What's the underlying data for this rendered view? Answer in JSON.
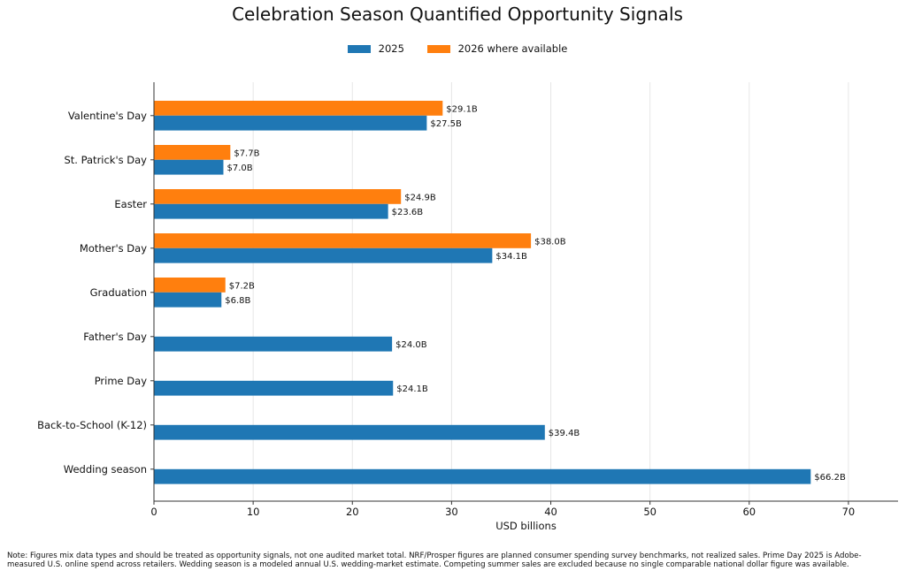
{
  "chart_data": {
    "type": "bar",
    "orientation": "horizontal",
    "title": "Celebration Season Quantified Opportunity Signals",
    "xlabel": "USD billions",
    "ylabel": "",
    "xlim": [
      0,
      75
    ],
    "xticks": [
      0,
      10,
      20,
      30,
      40,
      50,
      60,
      70
    ],
    "grid": "x",
    "legend_position": "top-center",
    "categories": [
      "Valentine's Day",
      "St. Patrick's Day",
      "Easter",
      "Mother's Day",
      "Graduation",
      "Father's Day",
      "Prime Day",
      "Back-to-School (K-12)",
      "Wedding season"
    ],
    "series": [
      {
        "name": "2025",
        "color": "#1f77b4",
        "values": [
          27.5,
          7.0,
          23.6,
          34.1,
          6.8,
          24.0,
          24.1,
          39.4,
          66.2
        ],
        "labels": [
          "$27.5B",
          "$7.0B",
          "$23.6B",
          "$34.1B",
          "$6.8B",
          "$24.0B",
          "$24.1B",
          "$39.4B",
          "$66.2B"
        ]
      },
      {
        "name": "2026 where available",
        "color": "#ff7f0e",
        "values": [
          29.1,
          7.7,
          24.9,
          38.0,
          7.2,
          null,
          null,
          null,
          null
        ],
        "labels": [
          "$29.1B",
          "$7.7B",
          "$24.9B",
          "$38.0B",
          "$7.2B",
          null,
          null,
          null,
          null
        ]
      }
    ],
    "note": "Note: Figures mix data types and should be treated as opportunity signals, not one audited market total. NRF/Prosper figures are planned consumer spending survey benchmarks, not realized sales. Prime Day 2025 is Adobe-measured U.S. online spend across retailers. Wedding season is a modeled annual U.S. wedding-market estimate. Competing summer sales are excluded because no single comparable national dollar figure was available."
  }
}
